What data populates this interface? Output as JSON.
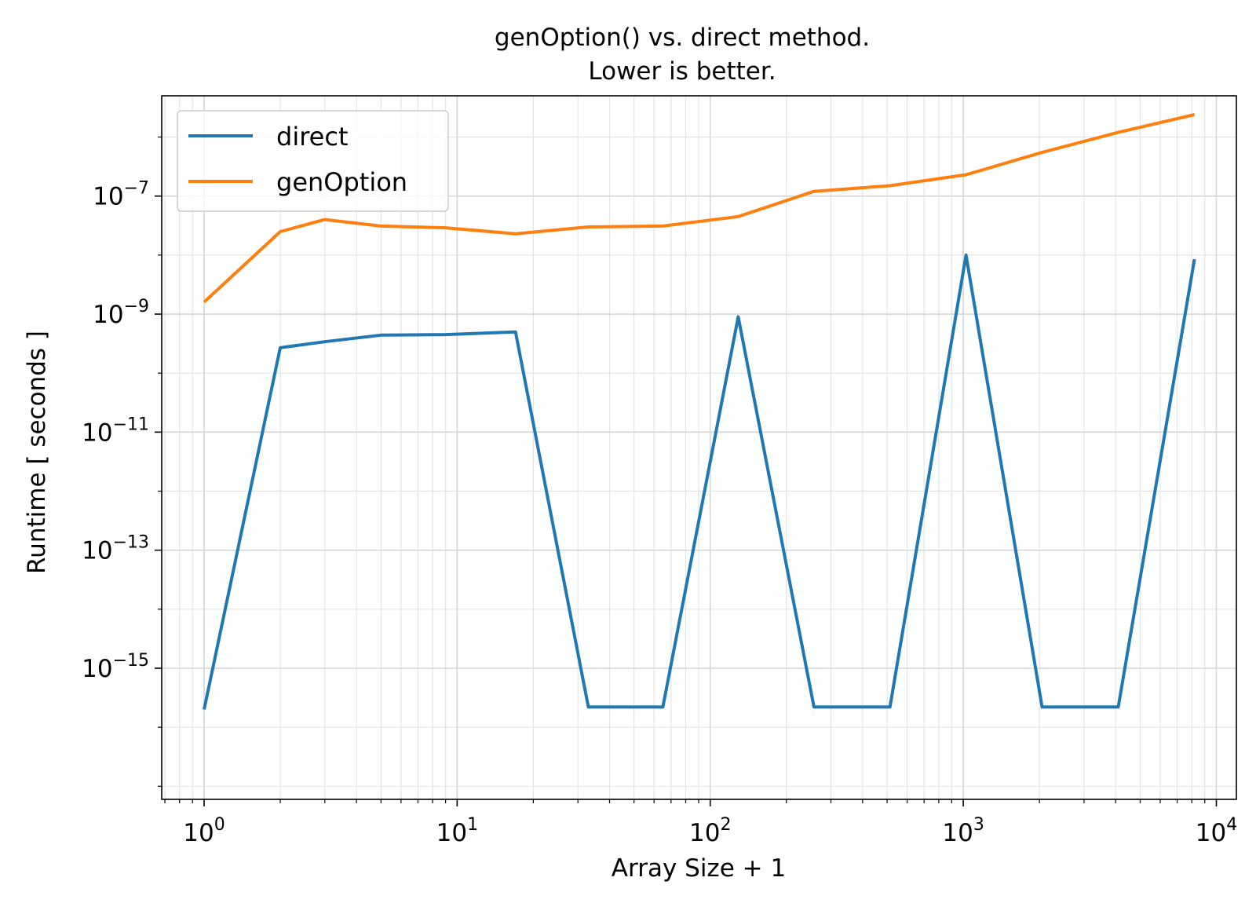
{
  "chart_data": {
    "type": "line",
    "title_line1": "genOption() vs. direct method.",
    "title_line2": "Lower is better.",
    "xlabel": "Array Size + 1",
    "ylabel": "Runtime [ seconds ]",
    "xscale": "log",
    "yscale": "log",
    "xlim": [
      0.68,
      12000
    ],
    "ylim": [
      6e-18,
      5e-06
    ],
    "grid": "both-major-minor",
    "legend_position": "upper left",
    "x_ticks": [
      {
        "value": 1,
        "base": "10",
        "exp": "0"
      },
      {
        "value": 10,
        "base": "10",
        "exp": "1"
      },
      {
        "value": 100,
        "base": "10",
        "exp": "2"
      },
      {
        "value": 1000,
        "base": "10",
        "exp": "3"
      },
      {
        "value": 10000,
        "base": "10",
        "exp": "4"
      }
    ],
    "y_ticks": [
      {
        "value": 1e-15,
        "base": "10",
        "exp": "−15"
      },
      {
        "value": 1e-13,
        "base": "10",
        "exp": "−13"
      },
      {
        "value": 1e-11,
        "base": "10",
        "exp": "−11"
      },
      {
        "value": 1e-09,
        "base": "10",
        "exp": "−9"
      },
      {
        "value": 1e-07,
        "base": "10",
        "exp": "−7"
      }
    ],
    "series": [
      {
        "name": "direct",
        "color": "#1f77b4",
        "points": [
          [
            1,
            2e-16
          ],
          [
            2,
            2.7e-10
          ],
          [
            3,
            3.4e-10
          ],
          [
            5,
            4.4e-10
          ],
          [
            9,
            4.5e-10
          ],
          [
            17,
            5e-10
          ],
          [
            33,
            2.2e-16
          ],
          [
            65,
            2.2e-16
          ],
          [
            129,
            9e-10
          ],
          [
            257,
            2.2e-16
          ],
          [
            513,
            2.2e-16
          ],
          [
            1025,
            1e-08
          ],
          [
            2049,
            2.2e-16
          ],
          [
            4097,
            2.2e-16
          ],
          [
            8193,
            8.5e-09
          ]
        ]
      },
      {
        "name": "genOption",
        "color": "#ff7f0e",
        "points": [
          [
            1,
            1.6e-09
          ],
          [
            2,
            2.5e-08
          ],
          [
            3,
            4e-08
          ],
          [
            5,
            3.1e-08
          ],
          [
            9,
            2.9e-08
          ],
          [
            17,
            2.3e-08
          ],
          [
            33,
            3e-08
          ],
          [
            65,
            3.1e-08
          ],
          [
            129,
            4.5e-08
          ],
          [
            257,
            1.2e-07
          ],
          [
            513,
            1.5e-07
          ],
          [
            1025,
            2.3e-07
          ],
          [
            2049,
            5.5e-07
          ],
          [
            4097,
            1.2e-06
          ],
          [
            8193,
            2.4e-06
          ]
        ]
      }
    ]
  }
}
